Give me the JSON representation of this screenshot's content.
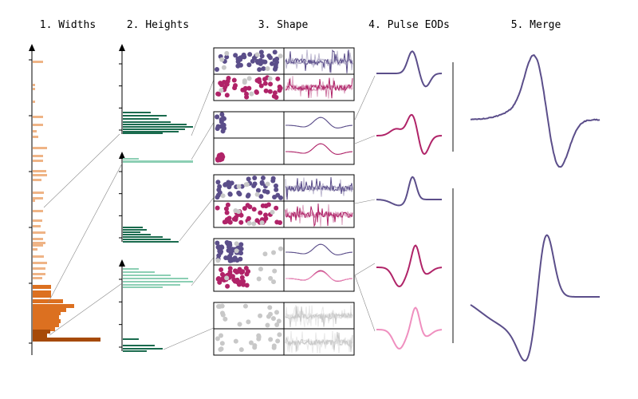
{
  "panels": [
    {
      "title": "1. Widths"
    },
    {
      "title": "2. Heights"
    },
    {
      "title": "3. Shape"
    },
    {
      "title": "4. Pulse EODs"
    },
    {
      "title": "5. Merge"
    }
  ],
  "colors": {
    "purple": "#5b4e8a",
    "magenta": "#b02368",
    "pink": "#ef8fbf",
    "gray": "#c8c8c8",
    "orange_light": "#efb486",
    "orange": "#dc7020",
    "orange_dark": "#a64a08",
    "green_dark": "#1a6b4e",
    "green_light": "#8ccfb4",
    "line": "#888888"
  }
}
